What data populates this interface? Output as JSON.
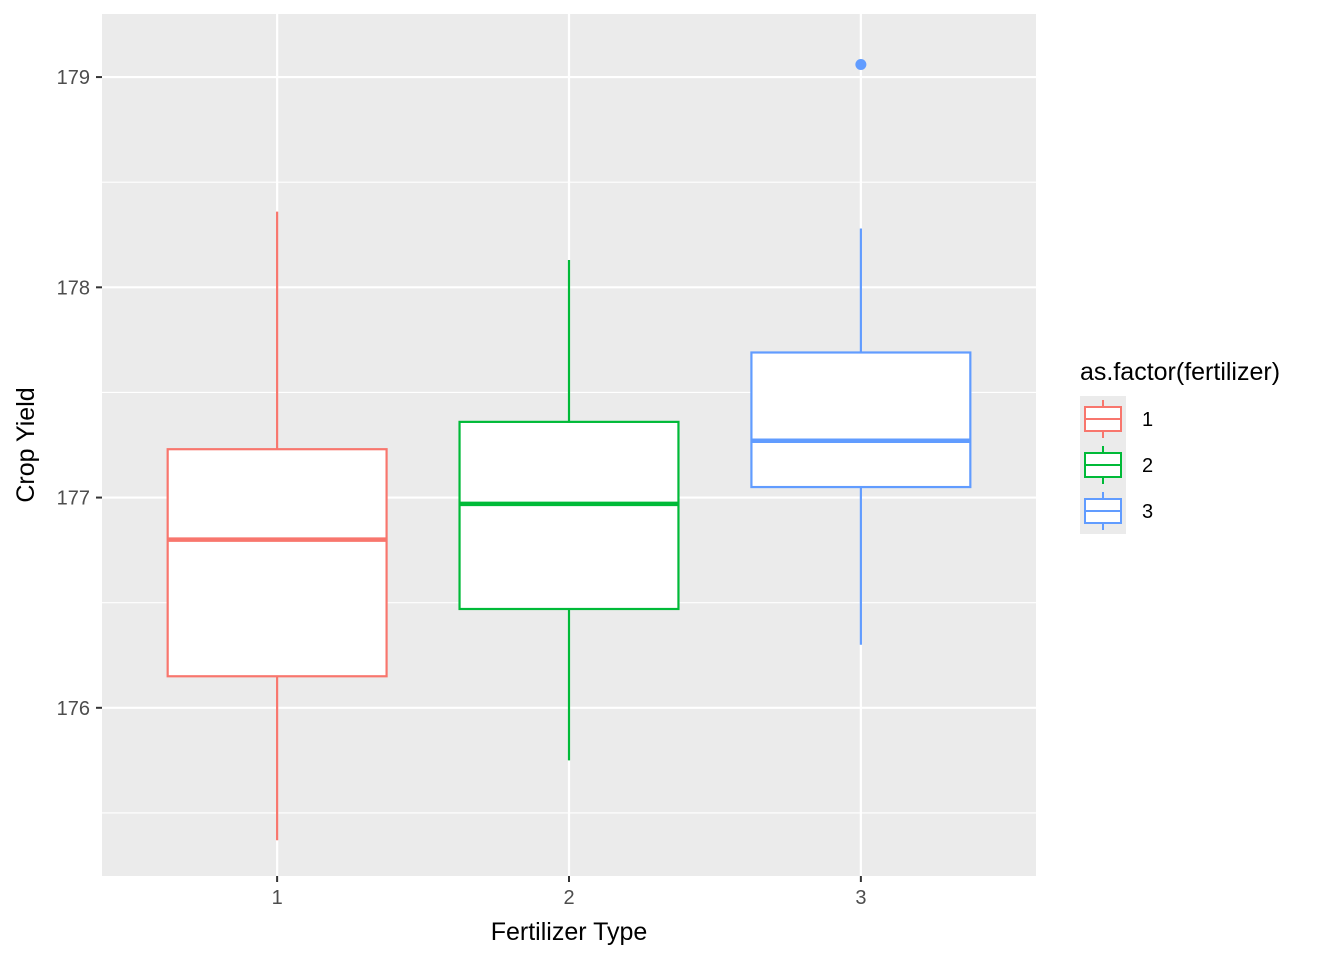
{
  "chart_data": {
    "type": "boxplot",
    "title": "",
    "xlabel": "Fertilizer Type",
    "ylabel": "Crop Yield",
    "ylim": [
      175.2,
      179.3
    ],
    "yticks": [
      176,
      177,
      178,
      179
    ],
    "ytick_labels": [
      "176",
      "177",
      "178",
      "179"
    ],
    "categories": [
      "1",
      "2",
      "3"
    ],
    "grid": true,
    "legend": {
      "title": "as.factor(fertilizer)",
      "placement": "right",
      "entries": [
        "1",
        "2",
        "3"
      ]
    },
    "series": [
      {
        "category": "1",
        "color": "#F8766D",
        "whisker_low": 175.37,
        "q1": 176.15,
        "median": 176.8,
        "q3": 177.23,
        "whisker_high": 178.36,
        "outliers": []
      },
      {
        "category": "2",
        "color": "#00BA38",
        "whisker_low": 175.75,
        "q1": 176.47,
        "median": 176.97,
        "q3": 177.36,
        "whisker_high": 178.13,
        "outliers": []
      },
      {
        "category": "3",
        "color": "#619CFF",
        "whisker_low": 176.3,
        "q1": 177.05,
        "median": 177.27,
        "q3": 177.69,
        "whisker_high": 178.28,
        "outliers": [
          179.06
        ]
      }
    ]
  }
}
